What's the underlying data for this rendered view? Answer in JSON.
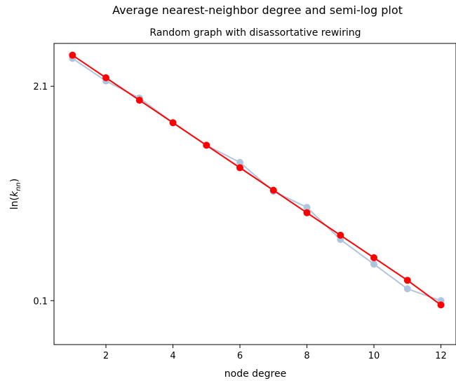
{
  "chart_data": {
    "type": "line",
    "suptitle": "Average nearest-neighbor degree and semi-log plot",
    "title": "Random graph with disassortative rewiring",
    "xlabel": "node degree",
    "ylabel": "ln(k_nn)",
    "xlim": [
      0.45,
      12.45
    ],
    "ylim": [
      -0.31,
      2.5
    ],
    "xticks": [
      2,
      4,
      6,
      8,
      10,
      12
    ],
    "yticks": [
      {
        "value": 2.1,
        "label": "2.1"
      },
      {
        "value": 0.1,
        "label": "0.1"
      }
    ],
    "grid": false,
    "series": [
      {
        "color": "#b0c4de",
        "marker": "circle",
        "x": [
          1,
          2,
          3,
          4,
          5,
          6,
          7,
          8,
          9,
          10,
          11,
          12
        ],
        "y": [
          2.36,
          2.15,
          1.99,
          1.76,
          1.55,
          1.39,
          1.12,
          0.97,
          0.67,
          0.44,
          0.21,
          0.1
        ]
      },
      {
        "color": "#ff0000",
        "marker": "circle",
        "x": [
          1,
          2,
          3,
          4,
          5,
          6,
          7,
          8,
          9,
          10,
          11,
          12
        ],
        "y": [
          2.39,
          2.18,
          1.97,
          1.76,
          1.55,
          1.34,
          1.13,
          0.92,
          0.71,
          0.5,
          0.29,
          0.06
        ]
      }
    ]
  }
}
